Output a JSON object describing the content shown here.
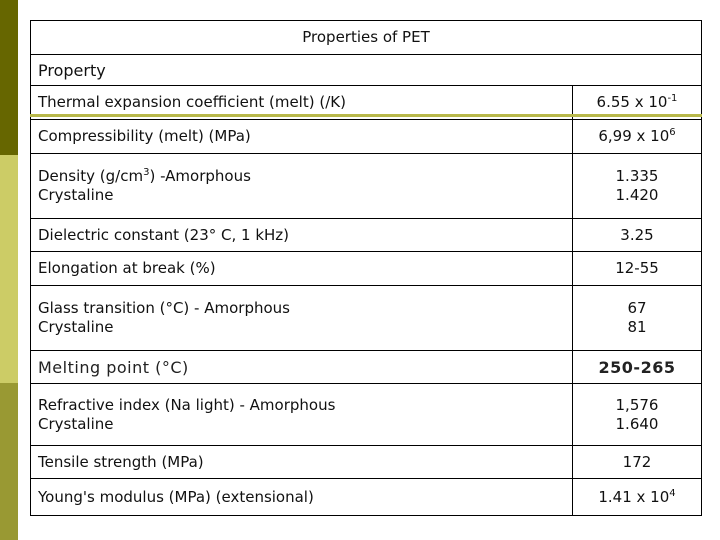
{
  "table": {
    "title": "Properties of PET",
    "header": "Property",
    "rows": [
      {
        "property": [
          [
            "Thermal expansion coefficient (melt) (/K)"
          ]
        ],
        "value": [
          [
            "6.55 x 10",
            {
              "sup": "-1"
            }
          ]
        ]
      },
      {
        "property": [
          [
            "Compressibility (melt) (MPa)"
          ]
        ],
        "value": [
          [
            "6,99 x 10",
            {
              "sup": "6"
            }
          ]
        ]
      },
      {
        "property": [
          [
            "Density (g/cm",
            {
              "sup": "3"
            },
            ") -Amorphous"
          ],
          [
            "Crystaline"
          ]
        ],
        "value": [
          [
            "1.335"
          ],
          [
            "1.420"
          ]
        ]
      },
      {
        "property": [
          [
            "Dielectric constant (23° C, 1 kHz)"
          ]
        ],
        "value": [
          [
            "3.25"
          ]
        ]
      },
      {
        "property": [
          [
            "Elongation at break (%)"
          ]
        ],
        "value": [
          [
            "12-55"
          ]
        ]
      },
      {
        "property": [
          [
            "Glass transition (°C) - Amorphous"
          ],
          [
            "Crystaline"
          ]
        ],
        "value": [
          [
            "67"
          ],
          [
            "81"
          ]
        ]
      },
      {
        "property": [
          [
            "Melting point (°C)"
          ]
        ],
        "value": [
          [
            "250-265"
          ]
        ],
        "emphasis": true
      },
      {
        "property": [
          [
            "Refractive index (Na light) - Amorphous"
          ],
          [
            "Crystaline"
          ]
        ],
        "value": [
          [
            "1,576"
          ],
          [
            "1.640"
          ]
        ]
      },
      {
        "property": [
          [
            "Tensile strength (MPa)"
          ]
        ],
        "value": [
          [
            "172"
          ]
        ]
      },
      {
        "property": [
          [
            "Young's modulus (MPa) (extensional)"
          ]
        ],
        "value": [
          [
            "1.41 x 10",
            {
              "sup": "4"
            }
          ]
        ]
      }
    ]
  }
}
